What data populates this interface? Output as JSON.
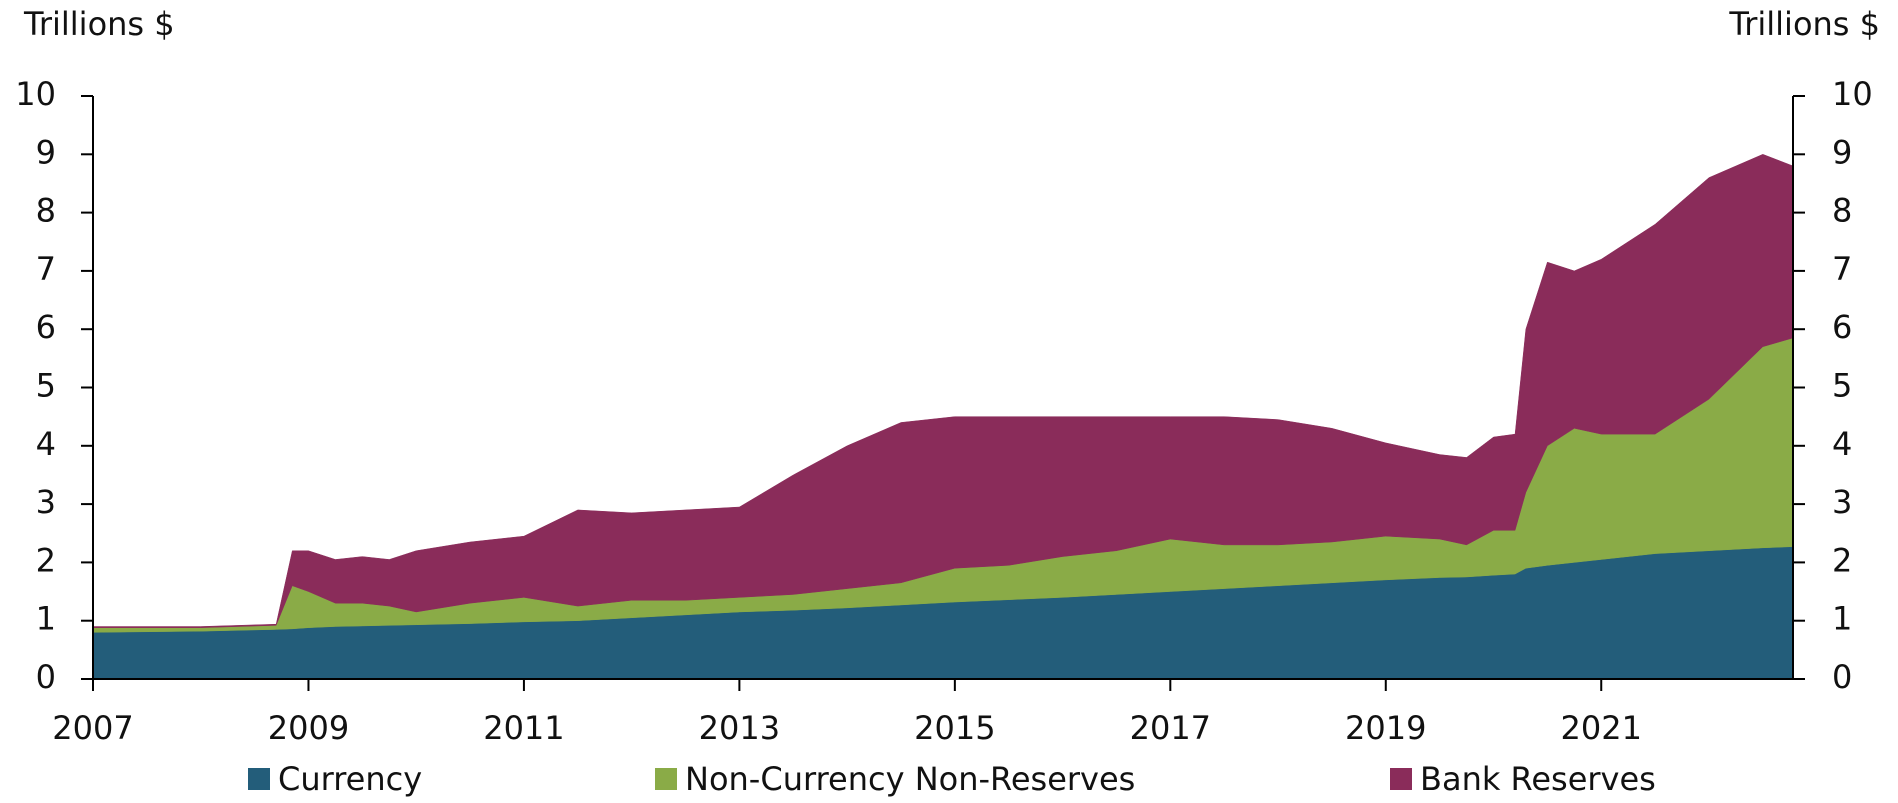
{
  "chart_data": {
    "type": "stacked_area",
    "ylabel": "Trillions $",
    "y2label": "Trillions $",
    "x": [
      2007,
      2008,
      2008.7,
      2008.85,
      2009,
      2009.25,
      2009.5,
      2009.75,
      2010,
      2010.5,
      2011,
      2011.5,
      2012,
      2012.5,
      2013,
      2013.5,
      2014,
      2014.5,
      2015,
      2015.5,
      2016,
      2016.5,
      2017,
      2017.5,
      2018,
      2018.5,
      2019,
      2019.5,
      2019.75,
      2020,
      2020.2,
      2020.3,
      2020.5,
      2020.75,
      2021,
      2021.5,
      2022,
      2022.5,
      2022.78
    ],
    "series": [
      {
        "name": "Currency",
        "color": "#235d7a",
        "values": [
          0.8,
          0.82,
          0.85,
          0.86,
          0.88,
          0.9,
          0.91,
          0.92,
          0.93,
          0.95,
          0.98,
          1.0,
          1.05,
          1.1,
          1.15,
          1.18,
          1.22,
          1.27,
          1.32,
          1.36,
          1.4,
          1.45,
          1.5,
          1.55,
          1.6,
          1.65,
          1.7,
          1.74,
          1.75,
          1.78,
          1.8,
          1.9,
          1.95,
          2.0,
          2.05,
          2.15,
          2.2,
          2.25,
          2.27
        ]
      },
      {
        "name": "Non-Currency Non-Reserves",
        "color": "#8aab47",
        "values": [
          0.08,
          0.06,
          0.07,
          0.74,
          0.62,
          0.4,
          0.39,
          0.33,
          0.22,
          0.35,
          0.42,
          0.25,
          0.3,
          0.25,
          0.25,
          0.27,
          0.33,
          0.38,
          0.58,
          0.59,
          0.7,
          0.75,
          0.9,
          0.75,
          0.7,
          0.7,
          0.75,
          0.66,
          0.55,
          0.77,
          0.75,
          1.3,
          2.05,
          2.3,
          2.15,
          2.05,
          2.6,
          3.45,
          3.58
        ]
      },
      {
        "name": "Bank Reserves",
        "color": "#8a2c5a",
        "values": [
          0.02,
          0.02,
          0.02,
          0.6,
          0.7,
          0.75,
          0.8,
          0.8,
          1.05,
          1.05,
          1.05,
          1.65,
          1.5,
          1.55,
          1.55,
          2.05,
          2.45,
          2.75,
          2.6,
          2.55,
          2.4,
          2.3,
          2.1,
          2.2,
          2.15,
          1.95,
          1.6,
          1.45,
          1.5,
          1.6,
          1.65,
          2.8,
          3.15,
          2.7,
          3.0,
          3.6,
          3.8,
          3.3,
          2.95
        ]
      }
    ],
    "xlim": [
      2007,
      2022.78
    ],
    "xticks": [
      2007,
      2009,
      2011,
      2013,
      2015,
      2017,
      2019,
      2021
    ],
    "ylim": [
      0,
      10
    ],
    "yticks": [
      0,
      1,
      2,
      3,
      4,
      5,
      6,
      7,
      8,
      9,
      10
    ],
    "y2lim": [
      0,
      10
    ],
    "y2ticks": [
      0,
      1,
      2,
      3,
      4,
      5,
      6,
      7,
      8,
      9,
      10
    ],
    "legend": "bottom"
  }
}
